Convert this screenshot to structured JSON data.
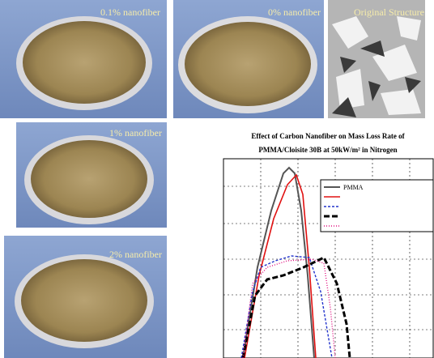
{
  "panels": [
    {
      "label": "0.1% nanofiber"
    },
    {
      "label": "0% nanofiber"
    },
    {
      "label": "Original Structure"
    },
    {
      "label": "1% nanofiber"
    },
    {
      "label": "2% nanofiber"
    }
  ],
  "chart": {
    "title_lines": [
      "Effect of Carbon Nanofiber on Mass Loss Rate of",
      "PMMA/Cloisite 30B at 50kW/m² in Nitrogen"
    ],
    "legend": [
      "PMMA"
    ]
  }
}
